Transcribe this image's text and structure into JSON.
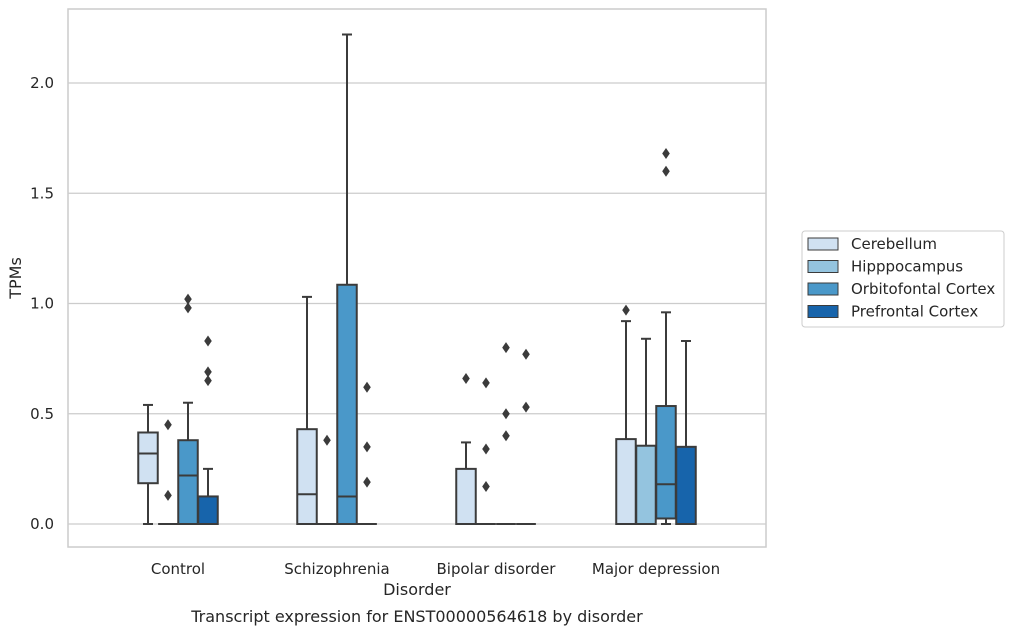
{
  "chart_data": {
    "type": "box",
    "xlabel": "Disorder",
    "ylabel": "TPMs",
    "caption": "Transcript expression for ENST00000564618 by disorder",
    "ylim": [
      -0.11,
      2.34
    ],
    "yticks": [
      "0.0",
      "0.5",
      "1.0",
      "1.5",
      "2.0"
    ],
    "ytick_values": [
      0.0,
      0.5,
      1.0,
      1.5,
      2.0
    ],
    "grid": "horizontal",
    "legend_position": "right",
    "categories": [
      "Control",
      "Schizophrenia",
      "Bipolar disorder",
      "Major depression"
    ],
    "series": [
      {
        "name": "Cerebellum",
        "color": "#d0e1f2",
        "boxes": [
          {
            "q1": 0.185,
            "median": 0.32,
            "q3": 0.415,
            "whisker_low": 0.0,
            "whisker_high": 0.54,
            "outliers": []
          },
          {
            "q1": 0.0,
            "median": 0.135,
            "q3": 0.43,
            "whisker_low": 0.0,
            "whisker_high": 1.03,
            "outliers": []
          },
          {
            "q1": 0.0,
            "median": 0.0,
            "q3": 0.25,
            "whisker_low": 0.0,
            "whisker_high": 0.37,
            "outliers": [
              0.66
            ]
          },
          {
            "q1": 0.0,
            "median": 0.0,
            "q3": 0.385,
            "whisker_low": 0.0,
            "whisker_high": 0.92,
            "outliers": [
              0.97
            ]
          }
        ]
      },
      {
        "name": "Hipppocampus",
        "color": "#94c4df",
        "boxes": [
          {
            "q1": 0.0,
            "median": 0.0,
            "q3": 0.0,
            "whisker_low": 0.0,
            "whisker_high": 0.0,
            "outliers": [
              0.13,
              0.45
            ]
          },
          {
            "q1": 0.0,
            "median": 0.0,
            "q3": 0.0,
            "whisker_low": 0.0,
            "whisker_high": 0.0,
            "outliers": [
              0.38
            ]
          },
          {
            "q1": 0.0,
            "median": 0.0,
            "q3": 0.0,
            "whisker_low": 0.0,
            "whisker_high": 0.0,
            "outliers": [
              0.17,
              0.34,
              0.64
            ]
          },
          {
            "q1": 0.0,
            "median": 0.0,
            "q3": 0.355,
            "whisker_low": 0.0,
            "whisker_high": 0.84,
            "outliers": []
          }
        ]
      },
      {
        "name": "Orbitofontal Cortex",
        "color": "#4a98c9",
        "boxes": [
          {
            "q1": 0.0,
            "median": 0.22,
            "q3": 0.38,
            "whisker_low": 0.0,
            "whisker_high": 0.55,
            "outliers": [
              0.98,
              1.02
            ]
          },
          {
            "q1": 0.0,
            "median": 0.125,
            "q3": 1.085,
            "whisker_low": 0.0,
            "whisker_high": 2.22,
            "outliers": []
          },
          {
            "q1": 0.0,
            "median": 0.0,
            "q3": 0.0,
            "whisker_low": 0.0,
            "whisker_high": 0.0,
            "outliers": [
              0.4,
              0.5,
              0.8
            ]
          },
          {
            "q1": 0.025,
            "median": 0.18,
            "q3": 0.535,
            "whisker_low": 0.0,
            "whisker_high": 0.96,
            "outliers": [
              1.6,
              1.68
            ]
          }
        ]
      },
      {
        "name": "Prefrontal Cortex",
        "color": "#1764ab",
        "boxes": [
          {
            "q1": 0.0,
            "median": 0.0,
            "q3": 0.125,
            "whisker_low": 0.0,
            "whisker_high": 0.25,
            "outliers": [
              0.65,
              0.69,
              0.83
            ]
          },
          {
            "q1": 0.0,
            "median": 0.0,
            "q3": 0.0,
            "whisker_low": 0.0,
            "whisker_high": 0.0,
            "outliers": [
              0.19,
              0.35,
              0.62
            ]
          },
          {
            "q1": 0.0,
            "median": 0.0,
            "q3": 0.0,
            "whisker_low": 0.0,
            "whisker_high": 0.0,
            "outliers": [
              0.53,
              0.77
            ]
          },
          {
            "q1": 0.0,
            "median": 0.0,
            "q3": 0.35,
            "whisker_low": 0.0,
            "whisker_high": 0.83,
            "outliers": []
          }
        ]
      }
    ]
  }
}
